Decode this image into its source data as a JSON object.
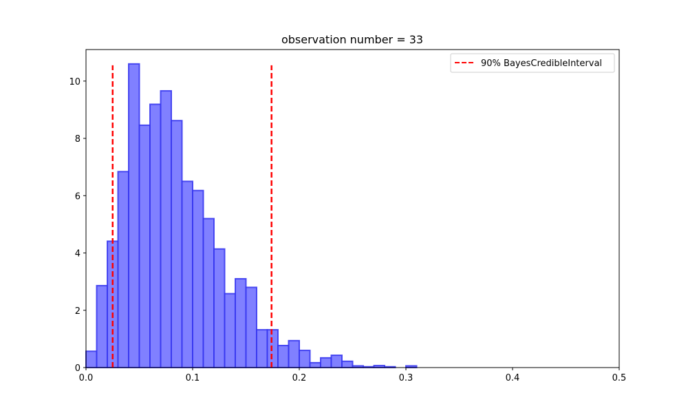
{
  "chart_data": {
    "type": "bar",
    "title": "observation number = 33",
    "xlabel": "",
    "ylabel": "",
    "xlim": [
      0,
      0.5
    ],
    "ylim": [
      0,
      11.1
    ],
    "grid": false,
    "xticks": [
      "0.0",
      "0.1",
      "0.2",
      "0.3",
      "0.4",
      "0.5"
    ],
    "xtick_values": [
      0,
      0.1,
      0.2,
      0.3,
      0.4,
      0.5
    ],
    "yticks": [
      "0",
      "2",
      "4",
      "6",
      "8",
      "10"
    ],
    "ytick_values": [
      0,
      2,
      4,
      6,
      8,
      10
    ],
    "bin_width": 0.01,
    "histogram": {
      "bin_starts": [
        0.0,
        0.01,
        0.02,
        0.03,
        0.04,
        0.05,
        0.06,
        0.07,
        0.08,
        0.09,
        0.1,
        0.11,
        0.12,
        0.13,
        0.14,
        0.15,
        0.16,
        0.17,
        0.18,
        0.19,
        0.2,
        0.21,
        0.22,
        0.23,
        0.24,
        0.25,
        0.26,
        0.27,
        0.28,
        0.29,
        0.3,
        0.31
      ],
      "values": [
        0.57,
        2.86,
        4.41,
        6.84,
        10.6,
        8.46,
        9.19,
        9.66,
        8.62,
        6.5,
        6.18,
        5.2,
        4.14,
        2.58,
        3.1,
        2.8,
        1.32,
        1.32,
        0.77,
        0.94,
        0.6,
        0.17,
        0.34,
        0.43,
        0.22,
        0.06,
        0.03,
        0.07,
        0.03,
        0.0,
        0.06,
        0.0
      ],
      "fill_color": "#8080ff",
      "edge_color": "#3333ee"
    },
    "vlines": [
      {
        "x": 0.025,
        "y_top": 10.55,
        "color": "#ff0000"
      },
      {
        "x": 0.174,
        "y_top": 10.55,
        "color": "#ff0000"
      }
    ],
    "legend": {
      "placement": "top-right",
      "entries": [
        {
          "label": "90% BayesCredibleInterval",
          "color": "#ff0000",
          "style": "dashed"
        }
      ]
    }
  }
}
